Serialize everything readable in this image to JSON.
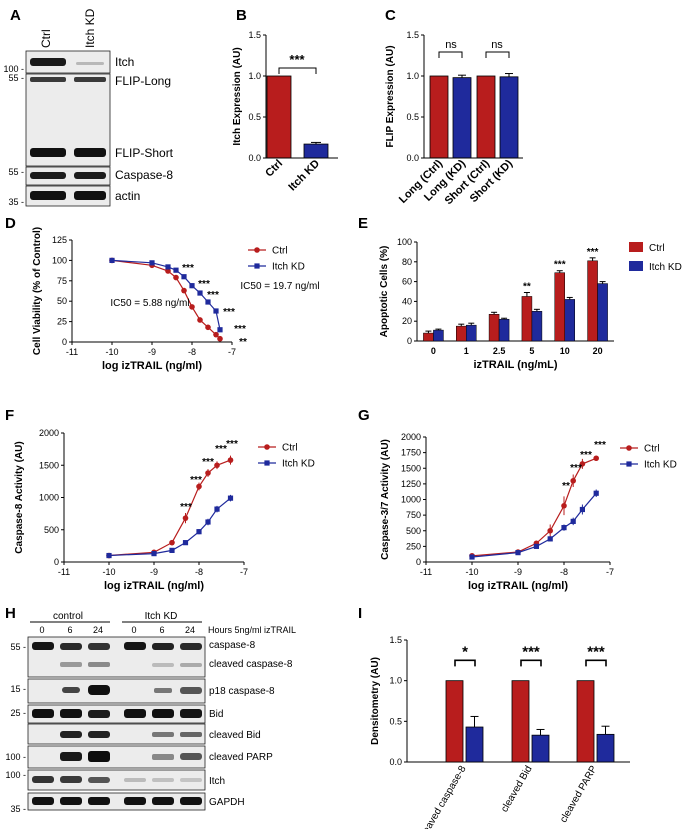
{
  "panels": [
    "A",
    "B",
    "C",
    "D",
    "E",
    "F",
    "G",
    "H",
    "I"
  ],
  "colors": {
    "ctrl": "#b81d1d",
    "kd": "#1f2a9c"
  },
  "blotA": {
    "lanes": [
      "Ctrl",
      "Itch KD"
    ],
    "bands": [
      "Itch",
      "FLIP-Long",
      "FLIP-Short",
      "Caspase-8",
      "actin"
    ],
    "markers": [
      "100 -",
      "55 -",
      "55 -",
      "35 -"
    ]
  },
  "blotH": {
    "groups": [
      "control",
      "Itch KD"
    ],
    "hours": [
      "0",
      "6",
      "24",
      "0",
      "6",
      "24"
    ],
    "hours_label": "Hours 5ng/ml izTRAIL",
    "bands": [
      "caspase-8",
      "cleaved caspase-8",
      "p18 caspase-8",
      "Bid",
      "cleaved Bid",
      "cleaved PARP",
      "Itch",
      "GAPDH"
    ],
    "markers": [
      "55 -",
      "15 -",
      "25 -",
      "100 -",
      "100 -",
      "35 -"
    ]
  },
  "chart_data": [
    {
      "panel": "B",
      "type": "bar",
      "categories": [
        "Ctrl",
        "Itch KD"
      ],
      "values": [
        1.0,
        0.17
      ],
      "errors": [
        0,
        0.02
      ],
      "ylabel": "Itch Expression (AU)",
      "ylim": [
        0,
        1.5
      ],
      "yticks": [
        "0.0",
        "0.5",
        "1.0",
        "1.5"
      ],
      "annotations": [
        "***"
      ]
    },
    {
      "panel": "C",
      "type": "bar",
      "categories": [
        "Long (Ctrl)",
        "Long (KD)",
        "Short (Ctrl)",
        "Short (KD)"
      ],
      "values": [
        1.0,
        0.98,
        1.0,
        0.99
      ],
      "errors": [
        0,
        0.03,
        0,
        0.04
      ],
      "ylabel": "FLIP Expression (AU)",
      "ylim": [
        0,
        1.5
      ],
      "yticks": [
        "0.0",
        "0.5",
        "1.0",
        "1.5"
      ],
      "annotations": [
        "ns",
        "ns"
      ]
    },
    {
      "panel": "D",
      "type": "line",
      "xlabel": "log izTRAIL (ng/ml)",
      "ylabel": "Cell Viability (% of Control)",
      "xlim": [
        -11,
        -7
      ],
      "ylim": [
        0,
        125
      ],
      "xticks": [
        "-11",
        "-10",
        "-9",
        "-8",
        "-7"
      ],
      "yticks": [
        "0",
        "25",
        "50",
        "75",
        "100",
        "125"
      ],
      "series": [
        {
          "name": "Ctrl",
          "x": [
            -10,
            -9,
            -8.6,
            -8.4,
            -8.2,
            -8.0,
            -7.8,
            -7.6,
            -7.4,
            -7.3
          ],
          "y": [
            100,
            94,
            87,
            79,
            63,
            43,
            27,
            18,
            9,
            4
          ],
          "errors": [
            2,
            2,
            2,
            3,
            2,
            2,
            1,
            1,
            1,
            1
          ]
        },
        {
          "name": "Itch KD",
          "x": [
            -10,
            -9,
            -8.6,
            -8.4,
            -8.2,
            -8.0,
            -7.8,
            -7.6,
            -7.4,
            -7.3
          ],
          "y": [
            100,
            97,
            92,
            88,
            80,
            69,
            60,
            49,
            38,
            15
          ],
          "errors": [
            2,
            2,
            3,
            2,
            2,
            3,
            3,
            3,
            3,
            2
          ]
        }
      ],
      "annotations": [
        "***",
        "***",
        "***",
        "***",
        "***",
        "**",
        "IC50 = 19.7 ng/ml",
        "IC50 = 5.88 ng/ml"
      ]
    },
    {
      "panel": "E",
      "type": "bar",
      "categories": [
        "0",
        "1",
        "2.5",
        "5",
        "10",
        "20"
      ],
      "xlabel": "izTRAIL (ng/mL)",
      "ylabel": "Apoptotic Cells (%)",
      "ylim": [
        0,
        100
      ],
      "yticks": [
        "0",
        "20",
        "40",
        "60",
        "80",
        "100"
      ],
      "series": [
        {
          "name": "Ctrl",
          "values": [
            8,
            15,
            27,
            45,
            69,
            81
          ],
          "errors": [
            2,
            2,
            2,
            4,
            2,
            3
          ]
        },
        {
          "name": "Itch KD",
          "values": [
            11,
            16,
            22,
            30,
            42,
            58
          ],
          "errors": [
            1,
            2,
            1,
            2,
            2,
            2
          ]
        }
      ],
      "annotations": [
        "**",
        "***",
        "***"
      ]
    },
    {
      "panel": "F",
      "type": "line",
      "xlabel": "log izTRAIL (ng/ml)",
      "ylabel": "Caspase-8 Activity (AU)",
      "xlim": [
        -11,
        -7
      ],
      "ylim": [
        0,
        2000
      ],
      "xticks": [
        "-11",
        "-10",
        "-9",
        "-8",
        "-7"
      ],
      "yticks": [
        "0",
        "500",
        "1000",
        "1500",
        "2000"
      ],
      "series": [
        {
          "name": "Ctrl",
          "x": [
            -10,
            -9,
            -8.6,
            -8.3,
            -8.0,
            -7.8,
            -7.6,
            -7.3
          ],
          "y": [
            100,
            150,
            300,
            680,
            1170,
            1380,
            1500,
            1580
          ],
          "errors": [
            10,
            20,
            30,
            80,
            60,
            60,
            60,
            70
          ]
        },
        {
          "name": "Itch KD",
          "x": [
            -10,
            -9,
            -8.6,
            -8.3,
            -8.0,
            -7.8,
            -7.6,
            -7.3
          ],
          "y": [
            100,
            130,
            180,
            300,
            470,
            620,
            820,
            990
          ],
          "errors": [
            10,
            15,
            20,
            30,
            40,
            50,
            50,
            50
          ]
        }
      ],
      "annotations": [
        "***",
        "***",
        "***",
        "***",
        "***"
      ]
    },
    {
      "panel": "G",
      "type": "line",
      "xlabel": "log izTRAIL  (ng/ml)",
      "ylabel": "Caspase-3/7 Activity (AU)",
      "xlim": [
        -11,
        -7
      ],
      "ylim": [
        0,
        2000
      ],
      "xticks": [
        "-11",
        "-10",
        "-9",
        "-8",
        "-7"
      ],
      "yticks": [
        "0",
        "250",
        "500",
        "750",
        "1000",
        "1250",
        "1500",
        "1750",
        "2000"
      ],
      "series": [
        {
          "name": "Ctrl",
          "x": [
            -10,
            -9,
            -8.6,
            -8.3,
            -8.0,
            -7.8,
            -7.6,
            -7.3
          ],
          "y": [
            100,
            160,
            300,
            500,
            900,
            1300,
            1570,
            1660
          ],
          "errors": [
            20,
            30,
            40,
            100,
            150,
            100,
            80,
            40
          ]
        },
        {
          "name": "Itch KD",
          "x": [
            -10,
            -9,
            -8.6,
            -8.3,
            -8.0,
            -7.8,
            -7.6,
            -7.3
          ],
          "y": [
            80,
            150,
            250,
            370,
            550,
            650,
            840,
            1100
          ],
          "errors": [
            20,
            20,
            30,
            40,
            50,
            60,
            80,
            60
          ]
        }
      ],
      "annotations": [
        "**",
        "***",
        "***",
        "***"
      ]
    },
    {
      "panel": "I",
      "type": "bar",
      "categories": [
        "cleaved caspase-8",
        "cleaved Bid",
        "cleaved PARP"
      ],
      "ylabel": "Densitometry (AU)",
      "ylim": [
        0,
        1.5
      ],
      "yticks": [
        "0.0",
        "0.5",
        "1.0",
        "1.5"
      ],
      "series": [
        {
          "name": "control",
          "values": [
            1.0,
            1.0,
            1.0
          ],
          "errors": [
            0,
            0,
            0
          ]
        },
        {
          "name": "Itch KD",
          "values": [
            0.43,
            0.33,
            0.34
          ],
          "errors": [
            0.13,
            0.07,
            0.1
          ]
        }
      ],
      "annotations": [
        "*",
        "***",
        "***"
      ]
    }
  ]
}
